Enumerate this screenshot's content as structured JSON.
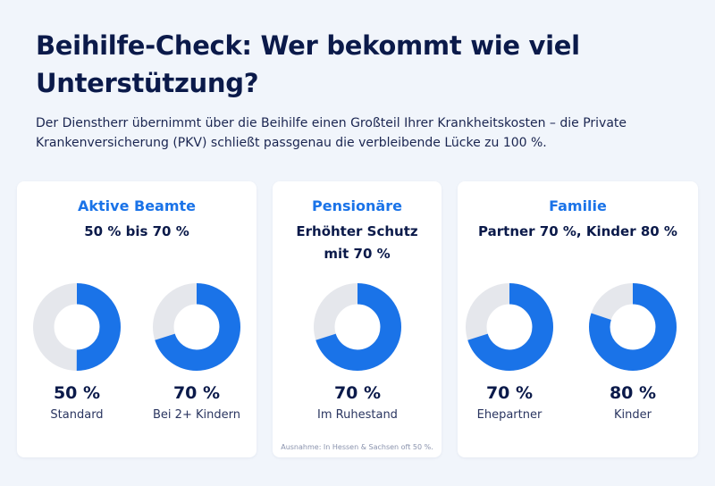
{
  "title": "Beihilfe-Check: Wer bekommt wie viel Unterstützung?",
  "subtitle": "Der Dienstherr übernimmt über die Beihilfe einen Großteil Ihrer Krankheitskosten – die Private Krankenversicherung (PKV) schließt passgenau die verbleibende Lücke zu 100 %.",
  "colors": {
    "accent": "#1a73e8",
    "donut_track": "#e5e7ec",
    "title": "#0b1a4a",
    "background": "#f1f5fb"
  },
  "cards": [
    {
      "title": "Aktive Beamte",
      "heading": "50 % bis 70 %",
      "stats": [
        {
          "value": "50 %",
          "label": "Standard",
          "percent": 50
        },
        {
          "value": "70 %",
          "label": "Bei 2+ Kindern",
          "percent": 70
        }
      ]
    },
    {
      "title": "Pensionäre",
      "heading": "Erhöhter Schutz mit 70 %",
      "stats": [
        {
          "value": "70 %",
          "label": "Im Ruhestand",
          "percent": 70
        }
      ],
      "footnote": "Ausnahme: In Hessen & Sachsen oft 50 %."
    },
    {
      "title": "Familie",
      "heading": "Partner 70 %, Kinder 80 %",
      "stats": [
        {
          "value": "70 %",
          "label": "Ehepartner",
          "percent": 70
        },
        {
          "value": "80 %",
          "label": "Kinder",
          "percent": 80
        }
      ]
    }
  ]
}
